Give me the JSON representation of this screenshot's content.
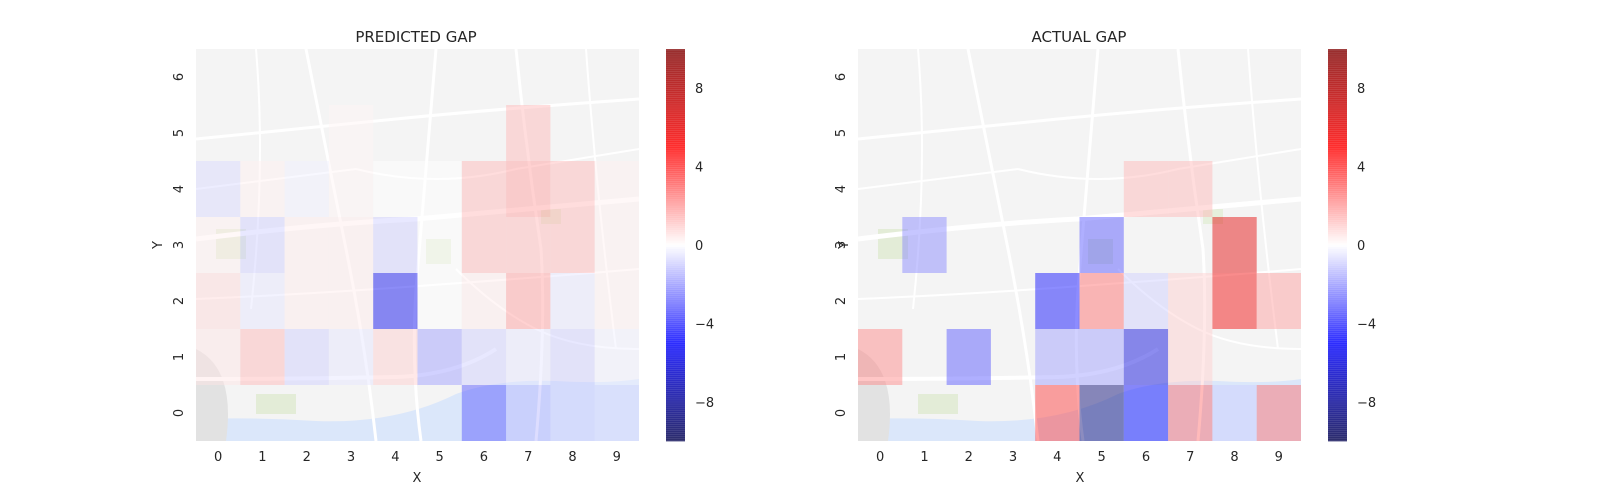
{
  "chart_data": [
    {
      "type": "heatmap",
      "title": "PREDICTED GAP",
      "xlabel": "X",
      "ylabel": "Y",
      "x_ticks": [
        "0",
        "1",
        "2",
        "3",
        "4",
        "5",
        "6",
        "7",
        "8",
        "9"
      ],
      "y_ticks": [
        "0",
        "1",
        "2",
        "3",
        "4",
        "5",
        "6"
      ],
      "background": "street map (translucent)",
      "cells": [
        {
          "x": 0,
          "y": 1,
          "value": 0.5
        },
        {
          "x": 1,
          "y": 1,
          "value": 1.5
        },
        {
          "x": 2,
          "y": 1,
          "value": -1.0
        },
        {
          "x": 3,
          "y": 1,
          "value": -0.5
        },
        {
          "x": 4,
          "y": 1,
          "value": 1.0
        },
        {
          "x": 5,
          "y": 1,
          "value": -2.0
        },
        {
          "x": 6,
          "y": 1,
          "value": -1.0
        },
        {
          "x": 7,
          "y": 1,
          "value": -0.5
        },
        {
          "x": 8,
          "y": 1,
          "value": -1.0
        },
        {
          "x": 9,
          "y": 1,
          "value": -0.3
        },
        {
          "x": 0,
          "y": 2,
          "value": 0.8
        },
        {
          "x": 1,
          "y": 2,
          "value": -0.5
        },
        {
          "x": 2,
          "y": 2,
          "value": 0.4
        },
        {
          "x": 3,
          "y": 2,
          "value": 0.4
        },
        {
          "x": 4,
          "y": 2,
          "value": -5.5
        },
        {
          "x": 5,
          "y": 2,
          "value": 0.0
        },
        {
          "x": 6,
          "y": 2,
          "value": 0.4
        },
        {
          "x": 7,
          "y": 2,
          "value": 2.0
        },
        {
          "x": 8,
          "y": 2,
          "value": -0.5
        },
        {
          "x": 9,
          "y": 2,
          "value": 0.3
        },
        {
          "x": 0,
          "y": 3,
          "value": 0.3
        },
        {
          "x": 1,
          "y": 3,
          "value": -1.0
        },
        {
          "x": 2,
          "y": 3,
          "value": 0.4
        },
        {
          "x": 3,
          "y": 3,
          "value": 0.4
        },
        {
          "x": 4,
          "y": 3,
          "value": -1.0
        },
        {
          "x": 5,
          "y": 3,
          "value": 0.0
        },
        {
          "x": 6,
          "y": 3,
          "value": 1.5
        },
        {
          "x": 7,
          "y": 3,
          "value": 1.5
        },
        {
          "x": 8,
          "y": 3,
          "value": 1.5
        },
        {
          "x": 9,
          "y": 3,
          "value": 0.3
        },
        {
          "x": 0,
          "y": 4,
          "value": -0.8
        },
        {
          "x": 1,
          "y": 4,
          "value": 0.3
        },
        {
          "x": 2,
          "y": 4,
          "value": -0.3
        },
        {
          "x": 3,
          "y": 4,
          "value": 0.2
        },
        {
          "x": 4,
          "y": 4,
          "value": 0.0
        },
        {
          "x": 5,
          "y": 4,
          "value": 0.0
        },
        {
          "x": 6,
          "y": 4,
          "value": 1.5
        },
        {
          "x": 7,
          "y": 4,
          "value": 2.0
        },
        {
          "x": 8,
          "y": 4,
          "value": 1.5
        },
        {
          "x": 9,
          "y": 4,
          "value": 0.3
        },
        {
          "x": 7,
          "y": 5,
          "value": 1.5
        },
        {
          "x": 3,
          "y": 5,
          "value": 0.2
        },
        {
          "x": 6,
          "y": 0,
          "value": -3.5
        },
        {
          "x": 7,
          "y": 0,
          "value": -1.5
        },
        {
          "x": 8,
          "y": 0,
          "value": -1.0
        },
        {
          "x": 9,
          "y": 0,
          "value": -0.8
        }
      ],
      "colorbar": {
        "range": [
          -10,
          10
        ],
        "ticks": [
          -8,
          -4,
          0,
          4,
          8
        ],
        "tick_labels": [
          "−8",
          "−4",
          "0",
          "4",
          "8"
        ],
        "colormap": "seismic"
      }
    },
    {
      "type": "heatmap",
      "title": "ACTUAL GAP",
      "xlabel": "X",
      "ylabel": "Y",
      "x_ticks": [
        "0",
        "1",
        "2",
        "3",
        "4",
        "5",
        "6",
        "7",
        "8",
        "9"
      ],
      "y_ticks": [
        "0",
        "1",
        "2",
        "3",
        "4",
        "5",
        "6"
      ],
      "background": "street map (translucent)",
      "cells": [
        {
          "x": 4,
          "y": 0,
          "value": 4.0
        },
        {
          "x": 5,
          "y": 0,
          "value": -9.0
        },
        {
          "x": 6,
          "y": 0,
          "value": -5.0
        },
        {
          "x": 7,
          "y": 0,
          "value": 3.0
        },
        {
          "x": 8,
          "y": 0,
          "value": -1.0
        },
        {
          "x": 9,
          "y": 0,
          "value": 3.0
        },
        {
          "x": 0,
          "y": 1,
          "value": 2.5
        },
        {
          "x": 2,
          "y": 1,
          "value": -3.5
        },
        {
          "x": 4,
          "y": 1,
          "value": -2.0
        },
        {
          "x": 5,
          "y": 1,
          "value": -2.0
        },
        {
          "x": 6,
          "y": 1,
          "value": -6.0
        },
        {
          "x": 7,
          "y": 1,
          "value": 1.0
        },
        {
          "x": 4,
          "y": 2,
          "value": -5.0
        },
        {
          "x": 5,
          "y": 2,
          "value": 3.0
        },
        {
          "x": 6,
          "y": 2,
          "value": -1.0
        },
        {
          "x": 7,
          "y": 2,
          "value": 1.0
        },
        {
          "x": 8,
          "y": 2,
          "value": 5.5
        },
        {
          "x": 9,
          "y": 2,
          "value": 2.0
        },
        {
          "x": 1,
          "y": 3,
          "value": -2.5
        },
        {
          "x": 5,
          "y": 3,
          "value": -3.5
        },
        {
          "x": 8,
          "y": 3,
          "value": 6.0
        },
        {
          "x": 6,
          "y": 4,
          "value": 1.5
        },
        {
          "x": 7,
          "y": 4,
          "value": 1.5
        }
      ],
      "colorbar": {
        "range": [
          -10,
          10
        ],
        "ticks": [
          -8,
          -4,
          0,
          4,
          8
        ],
        "tick_labels": [
          "−8",
          "−4",
          "0",
          "4",
          "8"
        ],
        "colormap": "seismic"
      }
    }
  ]
}
